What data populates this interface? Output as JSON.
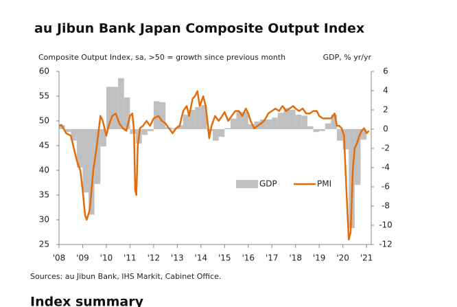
{
  "chart_data": {
    "type": "bar-line",
    "title": "au Jibun Bank Japan Composite Output Index",
    "y_label": "Composite Output Index, sa, >50 = growth since previous month",
    "y2_label": "GDP, % yr/yr",
    "source": "Sources: au Jibun Bank, IHS Markit, Cabinet Office.",
    "xlim": [
      2008,
      2021.2
    ],
    "xticks": [
      {
        "value": 2008,
        "label": "'08"
      },
      {
        "value": 2009,
        "label": "'09"
      },
      {
        "value": 2010,
        "label": "'10"
      },
      {
        "value": 2011,
        "label": "'11"
      },
      {
        "value": 2012,
        "label": "'12"
      },
      {
        "value": 2013,
        "label": "'13"
      },
      {
        "value": 2014,
        "label": "'14"
      },
      {
        "value": 2015,
        "label": "'15"
      },
      {
        "value": 2016,
        "label": "'16"
      },
      {
        "value": 2017,
        "label": "'17"
      },
      {
        "value": 2018,
        "label": "'18"
      },
      {
        "value": 2019,
        "label": "'19"
      },
      {
        "value": 2020,
        "label": "'20"
      },
      {
        "value": 2021,
        "label": "'21"
      }
    ],
    "ylim": [
      25,
      60
    ],
    "yticks": [
      25,
      30,
      35,
      40,
      45,
      50,
      55,
      60
    ],
    "y2lim": [
      -12,
      6
    ],
    "y2ticks": [
      -12,
      -10,
      -8,
      -6,
      -4,
      -2,
      0,
      2,
      4,
      6
    ],
    "legend": "inside-right",
    "series": [
      {
        "name": "GDP",
        "type": "bar",
        "axis": "y2",
        "color": "#c0c0c0",
        "bar_width": 0.25,
        "x": [
          2008.125,
          2008.375,
          2008.625,
          2008.875,
          2009.125,
          2009.375,
          2009.625,
          2009.875,
          2010.125,
          2010.375,
          2010.625,
          2010.875,
          2011.125,
          2011.375,
          2011.625,
          2011.875,
          2012.125,
          2012.375,
          2012.625,
          2012.875,
          2013.125,
          2013.375,
          2013.625,
          2013.875,
          2014.125,
          2014.375,
          2014.625,
          2014.875,
          2015.125,
          2015.375,
          2015.625,
          2015.875,
          2016.125,
          2016.375,
          2016.625,
          2016.875,
          2017.125,
          2017.375,
          2017.625,
          2017.875,
          2018.125,
          2018.375,
          2018.625,
          2018.875,
          2019.125,
          2019.375,
          2019.625,
          2019.875,
          2020.125,
          2020.375,
          2020.625,
          2020.875
        ],
        "values": [
          0.4,
          -0.3,
          -1.2,
          -4.0,
          -6.6,
          -8.9,
          -5.7,
          -1.8,
          4.4,
          4.4,
          5.3,
          3.3,
          -0.5,
          -1.5,
          -0.6,
          -0.2,
          2.9,
          2.8,
          0.2,
          0.1,
          0.4,
          1.5,
          2.0,
          2.3,
          2.5,
          -0.2,
          -1.2,
          -0.8,
          0.1,
          1.1,
          1.8,
          1.8,
          0.5,
          0.8,
          1.0,
          1.0,
          1.2,
          1.7,
          2.2,
          2.0,
          1.5,
          1.4,
          0.3,
          -0.3,
          -0.2,
          0.6,
          1.5,
          -1.2,
          -2.1,
          -10.3,
          -5.8,
          -1.1
        ]
      },
      {
        "name": "PMI",
        "type": "line",
        "axis": "y",
        "color": "#e36c0a",
        "x": [
          2008.0,
          2008.1,
          2008.3,
          2008.5,
          2008.6,
          2008.75,
          2008.9,
          2009.0,
          2009.1,
          2009.17,
          2009.3,
          2009.45,
          2009.6,
          2009.75,
          2009.85,
          2010.0,
          2010.1,
          2010.25,
          2010.4,
          2010.55,
          2010.7,
          2010.85,
          2011.0,
          2011.1,
          2011.17,
          2011.22,
          2011.27,
          2011.33,
          2011.42,
          2011.55,
          2011.7,
          2011.85,
          2012.0,
          2012.2,
          2012.35,
          2012.5,
          2012.65,
          2012.8,
          2012.95,
          2013.1,
          2013.25,
          2013.4,
          2013.5,
          2013.65,
          2013.75,
          2013.85,
          2013.95,
          2014.1,
          2014.2,
          2014.25,
          2014.3,
          2014.35,
          2014.45,
          2014.6,
          2014.75,
          2014.9,
          2015.0,
          2015.15,
          2015.3,
          2015.45,
          2015.6,
          2015.75,
          2015.9,
          2016.0,
          2016.1,
          2016.25,
          2016.4,
          2016.55,
          2016.7,
          2016.85,
          2017.0,
          2017.15,
          2017.3,
          2017.45,
          2017.6,
          2017.75,
          2017.9,
          2018.0,
          2018.15,
          2018.3,
          2018.45,
          2018.6,
          2018.75,
          2018.9,
          2019.0,
          2019.15,
          2019.3,
          2019.5,
          2019.65,
          2019.75,
          2019.85,
          2019.95,
          2020.05,
          2020.15,
          2020.25,
          2020.33,
          2020.42,
          2020.5,
          2020.6,
          2020.7,
          2020.8,
          2020.9,
          2021.0,
          2021.1
        ],
        "values": [
          49,
          49.2,
          47.5,
          47,
          45,
          42,
          40,
          36,
          31,
          30,
          32,
          40,
          45,
          51,
          50,
          47,
          49,
          51,
          51.5,
          49.5,
          48.5,
          48,
          51,
          51.5,
          48,
          36,
          35,
          45,
          48.5,
          49,
          50,
          49,
          50.5,
          51,
          50,
          49.5,
          48.5,
          47.5,
          48.5,
          49,
          52,
          53,
          51,
          54.5,
          55,
          56,
          53,
          55,
          53,
          51,
          49,
          46.5,
          49,
          51,
          50,
          51,
          51.8,
          50,
          51,
          52,
          52,
          51,
          52.5,
          51.5,
          50,
          48.5,
          49,
          49.5,
          50.2,
          51.5,
          52,
          52.5,
          52,
          53,
          52,
          52.5,
          53,
          52.5,
          52,
          52.5,
          51.5,
          51.5,
          52,
          52,
          51,
          50.5,
          50.5,
          50.5,
          51.5,
          49,
          49,
          48.5,
          47,
          36,
          26,
          27.5,
          40,
          44.5,
          45.5,
          47,
          48,
          48.5,
          47.5,
          48
        ]
      }
    ]
  },
  "section_heading": "Index summary"
}
